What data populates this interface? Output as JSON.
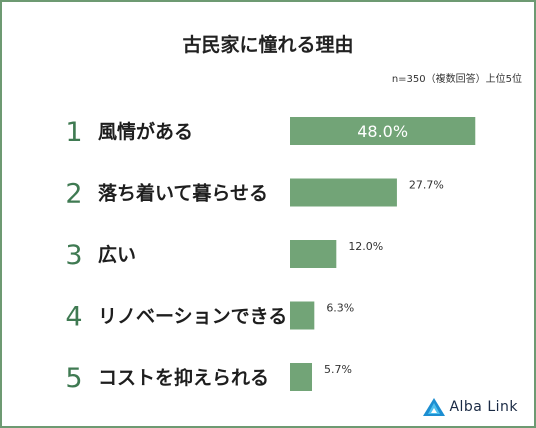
{
  "chart_data": {
    "type": "bar",
    "orientation": "horizontal",
    "title": "古民家に憧れる理由",
    "note": "n=350（複数回答）上位5位",
    "categories": [
      "風情がある",
      "落ち着いて暮らせる",
      "広い",
      "リノベーションできる",
      "コストを抑えられる"
    ],
    "ranks": [
      "1",
      "2",
      "3",
      "4",
      "5"
    ],
    "values": [
      48.0,
      27.7,
      12.0,
      6.3,
      5.7
    ],
    "value_labels": [
      "48.0%",
      "27.7%",
      "12.0%",
      "6.3%",
      "5.7%"
    ],
    "xlim": [
      0,
      50
    ],
    "grid": false,
    "bar_color": "#72a477"
  },
  "brand": {
    "name": "Alba Link",
    "accent": "#1c8ed1"
  },
  "colors": {
    "frame": "#6d9a72",
    "rank": "#3f7a52"
  }
}
